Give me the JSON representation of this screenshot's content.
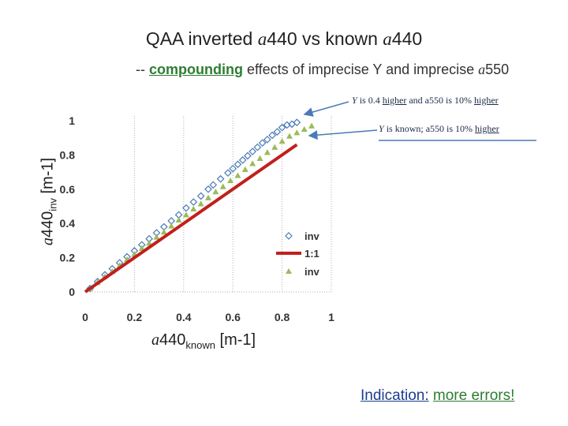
{
  "title": {
    "pre": "QAA inverted ",
    "var": "a",
    "num": "440 vs known ",
    "var2": "a",
    "num2": "440"
  },
  "subtitle": {
    "dash": "-- ",
    "highlight": "compounding",
    "rest": " effects of imprecise Y and imprecise ",
    "var": "a",
    "num": "550"
  },
  "annotations": {
    "top": {
      "y": "Y",
      "is": " is 0.4 ",
      "higher1": "higher",
      "mid": " and a550 is 10% ",
      "higher2": "higher"
    },
    "bottom": {
      "y": "Y",
      "rest": " is known; a550 is 10% ",
      "higher": "higher"
    }
  },
  "axes": {
    "x_label_var": "a",
    "x_label_num": "440",
    "x_label_sub": "known",
    "x_label_unit": " [m-1]",
    "y_label_var": "a",
    "y_label_num": "440",
    "y_label_sub": "inv",
    "y_label_unit": " [m-1]"
  },
  "footer": {
    "indication": "Indication:",
    "more": "more errors!"
  },
  "colors": {
    "blue": "#4a7ab8",
    "red": "#c0201c",
    "green": "#9bbb59",
    "grid": "#b0b0b0"
  },
  "chart_data": {
    "type": "scatter",
    "title": "QAA inverted a440 vs known a440",
    "xlabel": "a440known [m-1]",
    "ylabel": "a440inv [m-1]",
    "xlim": [
      0,
      1
    ],
    "ylim": [
      0,
      1
    ],
    "x_ticks": [
      "0",
      "0.2",
      "0.4",
      "0.6",
      "0.8",
      "1"
    ],
    "y_ticks": [
      "0",
      "0.2",
      "0.4",
      "0.6",
      "0.8",
      "1"
    ],
    "grid": "vertical dotted",
    "legend_position": "right",
    "series": [
      {
        "name": "inv",
        "marker": "open-diamond",
        "color": "#4a7ab8",
        "x": [
          0.02,
          0.05,
          0.08,
          0.11,
          0.14,
          0.17,
          0.2,
          0.23,
          0.26,
          0.29,
          0.32,
          0.35,
          0.38,
          0.41,
          0.44,
          0.47,
          0.5,
          0.52,
          0.55,
          0.58,
          0.6,
          0.62,
          0.64,
          0.66,
          0.68,
          0.7,
          0.72,
          0.74,
          0.76,
          0.78,
          0.8,
          0.82,
          0.84,
          0.86
        ],
        "y": [
          0.02,
          0.06,
          0.1,
          0.135,
          0.17,
          0.205,
          0.24,
          0.275,
          0.31,
          0.345,
          0.38,
          0.415,
          0.45,
          0.49,
          0.525,
          0.56,
          0.6,
          0.625,
          0.66,
          0.695,
          0.72,
          0.745,
          0.77,
          0.795,
          0.82,
          0.845,
          0.87,
          0.89,
          0.915,
          0.935,
          0.96,
          0.975,
          0.98,
          0.99
        ]
      },
      {
        "name": "1:1",
        "marker": "line",
        "color": "#c0201c",
        "x": [
          0,
          0.86
        ],
        "y": [
          0,
          0.86
        ]
      },
      {
        "name": "inv",
        "marker": "filled-triangle",
        "color": "#9bbb59",
        "x": [
          0.02,
          0.05,
          0.08,
          0.11,
          0.14,
          0.17,
          0.2,
          0.23,
          0.26,
          0.29,
          0.32,
          0.35,
          0.38,
          0.41,
          0.44,
          0.47,
          0.5,
          0.53,
          0.56,
          0.59,
          0.62,
          0.65,
          0.68,
          0.71,
          0.74,
          0.77,
          0.8,
          0.83,
          0.86,
          0.89,
          0.92
        ],
        "y": [
          0.02,
          0.055,
          0.09,
          0.12,
          0.155,
          0.19,
          0.22,
          0.255,
          0.285,
          0.32,
          0.35,
          0.385,
          0.42,
          0.45,
          0.485,
          0.515,
          0.55,
          0.585,
          0.615,
          0.65,
          0.68,
          0.715,
          0.75,
          0.78,
          0.815,
          0.845,
          0.88,
          0.91,
          0.93,
          0.95,
          0.97
        ]
      }
    ]
  }
}
